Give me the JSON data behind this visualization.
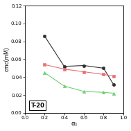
{
  "black_x": [
    0.2,
    0.4,
    0.6,
    0.8,
    0.9
  ],
  "black_y": [
    0.086,
    0.052,
    0.053,
    0.05,
    0.032
  ],
  "red_x": [
    0.2,
    0.4,
    0.6,
    0.8,
    0.9
  ],
  "red_y": [
    0.054,
    0.049,
    0.046,
    0.043,
    0.041
  ],
  "green_x": [
    0.2,
    0.4,
    0.6,
    0.8,
    0.9
  ],
  "green_y": [
    0.045,
    0.03,
    0.024,
    0.023,
    0.022
  ],
  "black_color": "#303030",
  "red_color": "#e87070",
  "green_color": "#70d070",
  "xlabel": "α₁",
  "ylabel": "cmc(mM)",
  "label_text": "T-20",
  "xlim": [
    0.0,
    1.0
  ],
  "ylim": [
    0.0,
    0.12
  ],
  "xticks": [
    0.0,
    0.2,
    0.4,
    0.6,
    0.8,
    1.0
  ],
  "yticks": [
    0.0,
    0.02,
    0.04,
    0.06,
    0.08,
    0.1,
    0.12
  ]
}
